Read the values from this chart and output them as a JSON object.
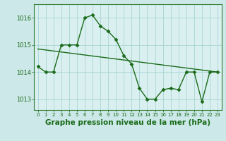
{
  "title": "Graphe pression niveau de la mer (hPa)",
  "background_color": "#cce8e8",
  "plot_bg_color": "#daf0f0",
  "grid_color": "#aad4d4",
  "line_color": "#1a6b1a",
  "marker_color": "#1a6b1a",
  "x_data": [
    0,
    1,
    2,
    3,
    4,
    5,
    6,
    7,
    8,
    9,
    10,
    11,
    12,
    13,
    14,
    15,
    16,
    17,
    18,
    19,
    20,
    21,
    22,
    23
  ],
  "y_data": [
    1014.2,
    1014.0,
    1014.0,
    1015.0,
    1015.0,
    1015.0,
    1016.0,
    1016.1,
    1015.7,
    1015.5,
    1015.2,
    1014.6,
    1014.3,
    1013.4,
    1013.0,
    1013.0,
    1013.35,
    1013.4,
    1013.35,
    1014.0,
    1014.0,
    1012.9,
    1014.0,
    1014.0
  ],
  "trend_x": [
    0,
    23
  ],
  "trend_y": [
    1014.85,
    1014.0
  ],
  "ylim": [
    1012.6,
    1016.5
  ],
  "xlim": [
    -0.5,
    23.5
  ],
  "yticks": [
    1013,
    1014,
    1015,
    1016
  ],
  "xticks": [
    0,
    1,
    2,
    3,
    4,
    5,
    6,
    7,
    8,
    9,
    10,
    11,
    12,
    13,
    14,
    15,
    16,
    17,
    18,
    19,
    20,
    21,
    22,
    23
  ],
  "title_fontsize": 7.5,
  "tick_fontsize": 6.0,
  "line_width": 1.0,
  "marker_size": 2.5
}
